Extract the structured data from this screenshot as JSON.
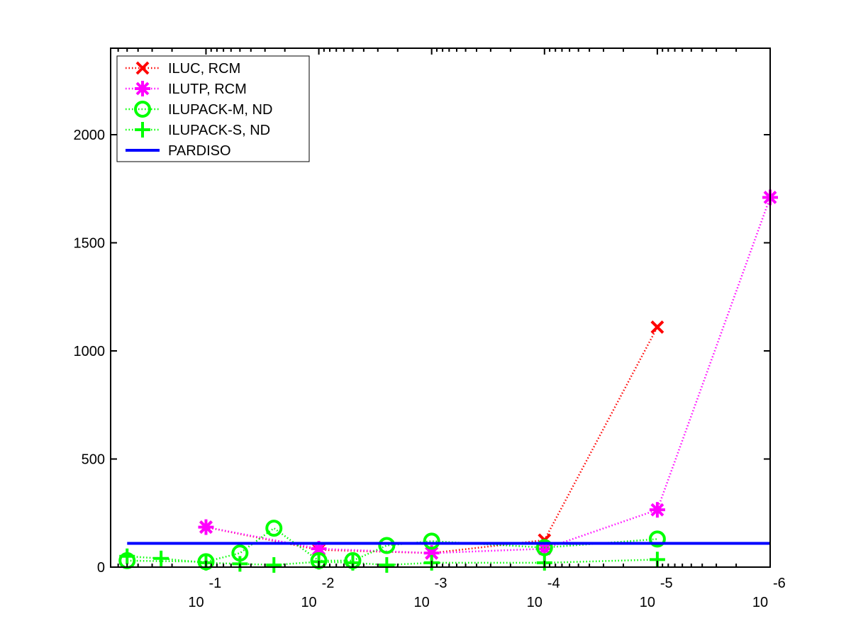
{
  "chart_data": {
    "type": "line",
    "xscale": "log",
    "xaxis_reversed": true,
    "xlim": [
      0.7,
      1e-06
    ],
    "ylim": [
      0,
      2400
    ],
    "grid": false,
    "legend_position": "top-left",
    "xticks": [
      {
        "value": 0.1,
        "base": "10",
        "exp": "-1"
      },
      {
        "value": 0.01,
        "base": "10",
        "exp": "-2"
      },
      {
        "value": 0.001,
        "base": "10",
        "exp": "-3"
      },
      {
        "value": 0.0001,
        "base": "10",
        "exp": "-4"
      },
      {
        "value": 1e-05,
        "base": "10",
        "exp": "-5"
      },
      {
        "value": 1e-06,
        "base": "10",
        "exp": "-6"
      }
    ],
    "yticks": [
      {
        "value": 0,
        "label": "0"
      },
      {
        "value": 500,
        "label": "500"
      },
      {
        "value": 1000,
        "label": "1000"
      },
      {
        "value": 1500,
        "label": "1500"
      },
      {
        "value": 2000,
        "label": "2000"
      }
    ],
    "series": [
      {
        "name": "ILUC, RCM",
        "color": "#ff0000",
        "marker": "x",
        "line": "dotted",
        "points": [
          [
            0.1,
            185
          ],
          [
            0.01,
            80
          ],
          [
            0.001,
            65
          ],
          [
            0.0001,
            125
          ],
          [
            1e-05,
            1110
          ]
        ]
      },
      {
        "name": "ILUTP, RCM",
        "color": "#ff00ff",
        "marker": "star",
        "line": "dotted",
        "points": [
          [
            0.1,
            185
          ],
          [
            0.01,
            85
          ],
          [
            0.001,
            65
          ],
          [
            0.0001,
            85
          ],
          [
            1e-05,
            265
          ],
          [
            1e-06,
            1710
          ]
        ]
      },
      {
        "name": "ILUPACK-M, ND",
        "color": "#00ff00",
        "marker": "circle",
        "line": "dotted",
        "points": [
          [
            0.5,
            30
          ],
          [
            0.1,
            25
          ],
          [
            0.05,
            65
          ],
          [
            0.025,
            180
          ],
          [
            0.01,
            30
          ],
          [
            0.005,
            30
          ],
          [
            0.0025,
            100
          ],
          [
            0.001,
            120
          ],
          [
            0.0001,
            90
          ],
          [
            1e-05,
            130
          ]
        ]
      },
      {
        "name": "ILUPACK-S, ND",
        "color": "#00ff00",
        "marker": "plus",
        "line": "dotted",
        "points": [
          [
            0.5,
            50
          ],
          [
            0.25,
            40
          ],
          [
            0.1,
            20
          ],
          [
            0.05,
            15
          ],
          [
            0.025,
            10
          ],
          [
            0.01,
            25
          ],
          [
            0.005,
            20
          ],
          [
            0.0025,
            10
          ],
          [
            0.001,
            20
          ],
          [
            0.0001,
            20
          ],
          [
            1e-05,
            35
          ]
        ]
      },
      {
        "name": "PARDISO",
        "color": "#0000ff",
        "marker": "none",
        "line": "solid",
        "points": [
          [
            0.5,
            110
          ],
          [
            1e-06,
            110
          ]
        ]
      }
    ]
  }
}
